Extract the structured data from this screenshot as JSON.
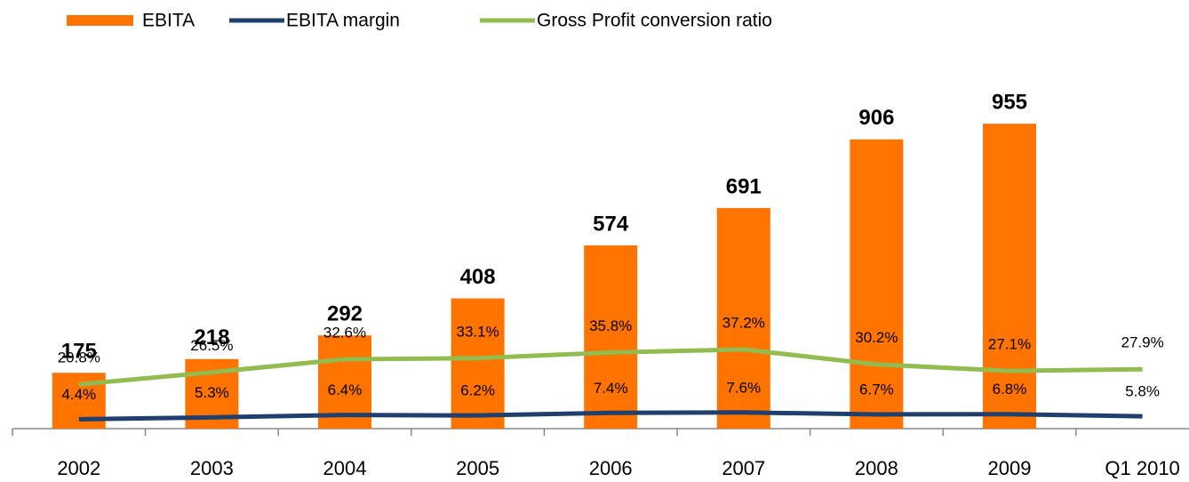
{
  "chart_data": {
    "type": "bar-line",
    "categories": [
      "2002",
      "2003",
      "2004",
      "2005",
      "2006",
      "2007",
      "2008",
      "2009",
      "Q1 2010"
    ],
    "series": [
      {
        "name": "EBITA",
        "type": "bar",
        "color": "#ff7300",
        "values": [
          175,
          218,
          292,
          408,
          574,
          691,
          906,
          955,
          null
        ]
      },
      {
        "name": "EBITA margin",
        "type": "line",
        "axis": "y2",
        "color": "#1f3f6e",
        "values": [
          4.4,
          5.3,
          6.4,
          6.2,
          7.4,
          7.6,
          6.7,
          6.8,
          5.8
        ],
        "value_labels": [
          "4.4%",
          "5.3%",
          "6.4%",
          "6.2%",
          "7.4%",
          "7.6%",
          "6.7%",
          "6.8%",
          "5.8%"
        ]
      },
      {
        "name": "Gross Profit conversion ratio",
        "type": "line",
        "axis": "y2",
        "color": "#92bb50",
        "values": [
          20.8,
          26.5,
          32.6,
          33.1,
          35.8,
          37.2,
          30.2,
          27.1,
          27.9
        ],
        "value_labels": [
          "20.8%",
          "26.5%",
          "32.6%",
          "33.1%",
          "35.8%",
          "37.2%",
          "30.2%",
          "27.1%",
          "27.9%"
        ]
      }
    ],
    "ylim": [
      0,
      1000
    ],
    "y2lim": [
      0,
      150
    ],
    "legend": "top"
  }
}
